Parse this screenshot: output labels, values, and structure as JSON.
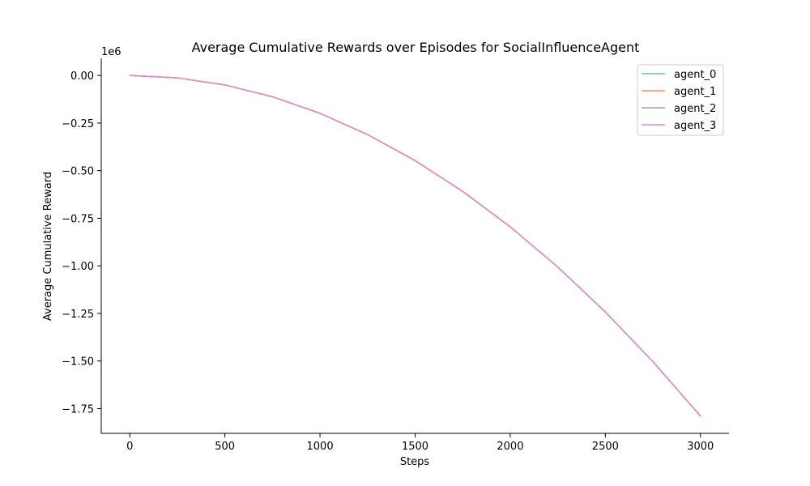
{
  "chart_data": {
    "type": "line",
    "title": "Average Cumulative Rewards over Episodes for SocialInfluenceAgent",
    "xlabel": "Steps",
    "ylabel": "Average Cumulative Reward",
    "y_offset_label": "1e6",
    "xlim": [
      -150,
      3150
    ],
    "ylim": [
      -1.88,
      0.09
    ],
    "x_ticks": [
      {
        "value": 0,
        "label": "0"
      },
      {
        "value": 500,
        "label": "500"
      },
      {
        "value": 1000,
        "label": "1000"
      },
      {
        "value": 1500,
        "label": "1500"
      },
      {
        "value": 2000,
        "label": "2000"
      },
      {
        "value": 2500,
        "label": "2500"
      },
      {
        "value": 3000,
        "label": "3000"
      }
    ],
    "y_ticks": [
      {
        "value": 0.0,
        "label": "0.00"
      },
      {
        "value": -0.25,
        "label": "−0.25"
      },
      {
        "value": -0.5,
        "label": "−0.50"
      },
      {
        "value": -0.75,
        "label": "−0.75"
      },
      {
        "value": -1.0,
        "label": "−1.00"
      },
      {
        "value": -1.25,
        "label": "−1.25"
      },
      {
        "value": -1.5,
        "label": "−1.50"
      },
      {
        "value": -1.75,
        "label": "−1.75"
      }
    ],
    "x": [
      0,
      250,
      500,
      750,
      1000,
      1250,
      1500,
      1750,
      2000,
      2250,
      2500,
      2750,
      3000
    ],
    "series": [
      {
        "name": "agent_0",
        "color": "#66c2a5",
        "values": [
          0,
          -0.0124,
          -0.0497,
          -0.1118,
          -0.1988,
          -0.3106,
          -0.4473,
          -0.6088,
          -0.7951,
          -1.0063,
          -1.2424,
          -1.5033,
          -1.789
        ]
      },
      {
        "name": "agent_1",
        "color": "#fc8d62",
        "values": [
          0,
          -0.0124,
          -0.0497,
          -0.1118,
          -0.1988,
          -0.3106,
          -0.4473,
          -0.6088,
          -0.7951,
          -1.0063,
          -1.2424,
          -1.5033,
          -1.789
        ]
      },
      {
        "name": "agent_2",
        "color": "#8da0cb",
        "values": [
          0,
          -0.0124,
          -0.0497,
          -0.1118,
          -0.1988,
          -0.3106,
          -0.4473,
          -0.6088,
          -0.7951,
          -1.0063,
          -1.2424,
          -1.5033,
          -1.789
        ]
      },
      {
        "name": "agent_3",
        "color": "#e78ac3",
        "values": [
          0,
          -0.0124,
          -0.0497,
          -0.1118,
          -0.1988,
          -0.3106,
          -0.4473,
          -0.6088,
          -0.7951,
          -1.0063,
          -1.2424,
          -1.5033,
          -1.789
        ]
      }
    ],
    "legend_position": "top-right",
    "grid": false
  }
}
